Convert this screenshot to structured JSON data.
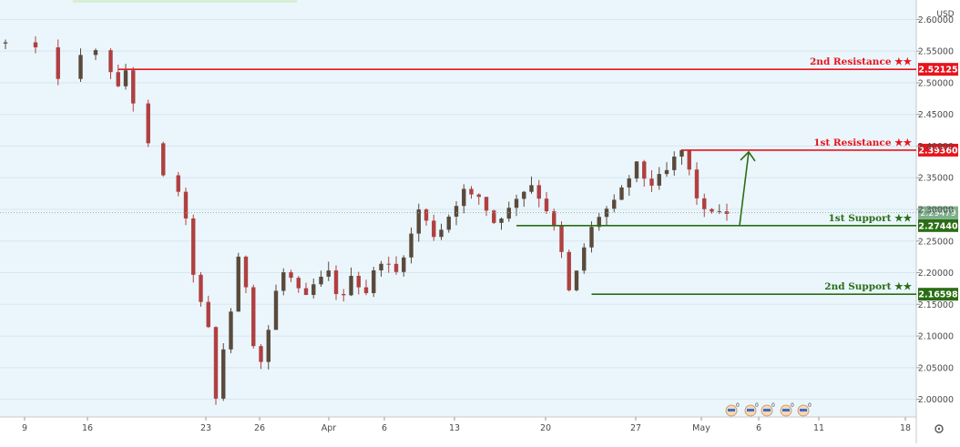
{
  "colors": {
    "background": "#eaf6fc",
    "axis_background": "#ffffff",
    "grid": "#d7e6ee",
    "resistance": "#e8141c",
    "support": "#2a6d14",
    "price_tag": "#7fb08e",
    "candle_up": "#5a4a3c",
    "candle_down": "#b04040",
    "axis_text": "#4a4a4a",
    "topbar_highlight": "#d7efd3"
  },
  "chart_data": {
    "type": "candlestick",
    "currency_label": "USD",
    "y_axis": {
      "range": [
        1.975,
        2.625
      ],
      "ticks": [
        "2.60000",
        "2.55000",
        "2.50000",
        "2.45000",
        "2.40000",
        "2.35000",
        "2.30000",
        "2.25000",
        "2.20000",
        "2.15000",
        "2.10000",
        "2.05000",
        "2.00000"
      ],
      "tick_values": [
        2.6,
        2.55,
        2.5,
        2.45,
        2.4,
        2.35,
        2.3,
        2.25,
        2.2,
        2.15,
        2.1,
        2.05,
        2.0
      ]
    },
    "x_axis": {
      "labels": [
        "9",
        "16",
        "23",
        "26",
        "Apr",
        "6",
        "13",
        "20",
        "27",
        "May",
        "6",
        "11",
        "18"
      ],
      "grid": false
    },
    "price_path": [
      [
        0,
        2.562
      ],
      [
        4,
        2.55
      ],
      [
        7,
        2.51
      ],
      [
        10,
        2.54
      ],
      [
        12,
        2.548
      ],
      [
        14,
        2.52
      ],
      [
        15,
        2.49
      ],
      [
        16,
        2.52
      ],
      [
        17,
        2.47
      ],
      [
        19,
        2.4
      ],
      [
        21,
        2.35
      ],
      [
        23,
        2.33
      ],
      [
        24,
        2.28
      ],
      [
        25,
        2.2
      ],
      [
        26,
        2.15
      ],
      [
        27,
        2.11
      ],
      [
        28,
        2.0
      ],
      [
        29,
        2.08
      ],
      [
        30,
        2.14
      ],
      [
        31,
        2.22
      ],
      [
        32,
        2.18
      ],
      [
        33,
        2.09
      ],
      [
        34,
        2.06
      ],
      [
        35,
        2.11
      ],
      [
        36,
        2.17
      ],
      [
        37,
        2.2
      ],
      [
        38,
        2.19
      ],
      [
        39,
        2.17
      ],
      [
        40,
        2.16
      ],
      [
        41,
        2.18
      ],
      [
        42,
        2.19
      ],
      [
        43,
        2.2
      ],
      [
        44,
        2.17
      ],
      [
        45,
        2.16
      ],
      [
        46,
        2.2
      ],
      [
        47,
        2.18
      ],
      [
        48,
        2.17
      ],
      [
        49,
        2.2
      ],
      [
        50,
        2.22
      ],
      [
        51,
        2.21
      ],
      [
        52,
        2.2
      ],
      [
        53,
        2.23
      ],
      [
        54,
        2.26
      ],
      [
        55,
        2.3
      ],
      [
        56,
        2.28
      ],
      [
        57,
        2.26
      ],
      [
        58,
        2.27
      ],
      [
        59,
        2.29
      ],
      [
        60,
        2.31
      ],
      [
        61,
        2.33
      ],
      [
        62,
        2.32
      ],
      [
        63,
        2.32
      ],
      [
        64,
        2.3
      ],
      [
        65,
        2.28
      ],
      [
        66,
        2.29
      ],
      [
        67,
        2.3
      ],
      [
        68,
        2.32
      ],
      [
        69,
        2.33
      ],
      [
        70,
        2.34
      ],
      [
        71,
        2.32
      ],
      [
        72,
        2.3
      ],
      [
        73,
        2.27
      ],
      [
        74,
        2.23
      ],
      [
        75,
        2.17
      ],
      [
        76,
        2.2
      ],
      [
        77,
        2.24
      ],
      [
        78,
        2.27
      ],
      [
        79,
        2.29
      ],
      [
        80,
        2.3
      ],
      [
        81,
        2.31
      ],
      [
        82,
        2.33
      ],
      [
        83,
        2.35
      ],
      [
        84,
        2.37
      ],
      [
        85,
        2.35
      ],
      [
        86,
        2.34
      ],
      [
        87,
        2.35
      ],
      [
        88,
        2.36
      ],
      [
        89,
        2.38
      ],
      [
        90,
        2.393
      ],
      [
        91,
        2.36
      ],
      [
        92,
        2.32
      ],
      [
        93,
        2.295
      ],
      [
        94,
        2.3
      ],
      [
        95,
        2.292
      ],
      [
        96,
        2.295
      ]
    ],
    "levels": [
      {
        "label": "2nd Resistance ★★",
        "value": 2.52125,
        "tag": "2.52125",
        "kind": "resistance",
        "start": 15
      },
      {
        "label": "1st Resistance ★★",
        "value": 2.3936,
        "tag": "2.39360",
        "kind": "resistance",
        "start": 90
      },
      {
        "label": "1st Support ★★",
        "value": 2.2744,
        "tag": "2.27440",
        "kind": "support",
        "start": 68
      },
      {
        "label": "2nd Support ★★",
        "value": 2.16598,
        "tag": "2.16598",
        "kind": "support",
        "start": 78
      }
    ],
    "current_price": {
      "value": 2.29479,
      "tag": "2.29479"
    },
    "projection_arrow": {
      "from": 2.2744,
      "to": 2.3936
    },
    "event_markers": [
      "0",
      "0",
      "0",
      "0",
      "0"
    ]
  }
}
